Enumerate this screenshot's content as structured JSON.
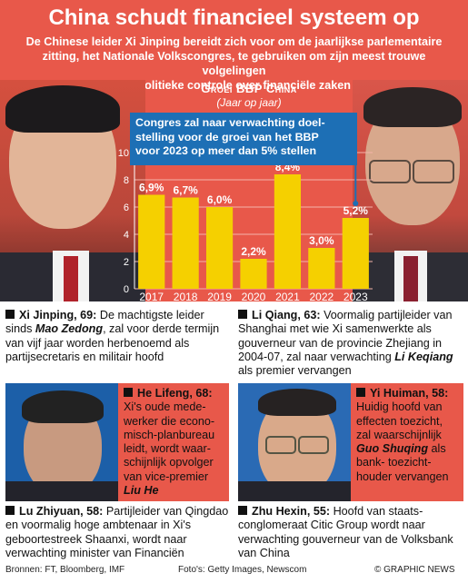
{
  "header": {
    "title": "China schudt financieel systeem op",
    "intro_lines": [
      "De Chinese leider Xi Jinping bereidt zich voor om de jaarlijkse parlementaire",
      "zitting, het Nationale Volkscongres, te gebruiken om zijn meest trouwe volgelingen",
      "te benoemen om de politieke controle over financiële zaken aan te scherpen"
    ]
  },
  "chart_data": {
    "type": "bar",
    "title": "Groei BBP China",
    "subtitle": "(Jaar op jaar)",
    "categories": [
      "2017",
      "2018",
      "2019",
      "2020",
      "2021",
      "2022",
      "2023"
    ],
    "values": [
      6.9,
      6.7,
      6.0,
      2.2,
      8.4,
      3.0,
      5.2
    ],
    "value_labels": [
      "6,9%",
      "6,7%",
      "6,0%",
      "2,2%",
      "8,4%",
      "3,0%",
      "5,2%"
    ],
    "yticks": [
      0,
      2,
      4,
      6,
      8,
      10
    ],
    "ylim": [
      0,
      10
    ],
    "grid": true,
    "bar_color": "#f5d000",
    "annotation": {
      "lines": [
        "Congres zal naar verwachting doel-",
        "stelling voor de groei van het BBP",
        "voor 2023 op meer dan 5% stellen"
      ],
      "color": "#1d6fb5"
    }
  },
  "bios": {
    "xi": {
      "name": "Xi Jinping, 69:",
      "text_a": " De machtigste leider sinds ",
      "em": "Mao Zedong",
      "text_b": ", zal voor derde termijn van vijf jaar worden herbenoemd als partijsecretaris en militair hoofd"
    },
    "li": {
      "name": "Li Qiang, 63:",
      "text_a": " Voormalig partijleider van Shanghai met wie Xi samenwerkte als gouverneur van de provincie Zhejiang in 2004-07, zal naar verwachting ",
      "em": "Li Keqiang",
      "text_b": " als premier vervangen"
    },
    "he": {
      "name": "He Lifeng, 68:",
      "text_a": " Xi's oude mede-werker die econo-misch-planbureau leidt, wordt waar-schijnlijk opvolger van vice-premier ",
      "em": "Liu He",
      "text_b": ""
    },
    "yi": {
      "name": "Yi Huiman, 58:",
      "text_a": " Huidig hoofd van effecten toezicht, zal waarschijnlijk ",
      "em": "Guo Shuqing",
      "text_b": " als bank- toezicht-houder vervangen"
    },
    "lu": {
      "name": "Lu Zhiyuan, 58:",
      "text_a": " Partijleider van Qingdao en voormalig hoge ambtenaar in Xi's geboortestreek Shaanxi, wordt naar verwachting minister van Financiën",
      "em": "",
      "text_b": ""
    },
    "zhu": {
      "name": "Zhu Hexin, 55:",
      "text_a": " Hoofd van staats-conglomeraat Citic Group wordt naar verwachting gouverneur van de Volksbank van China",
      "em": "",
      "text_b": ""
    }
  },
  "footer": {
    "sources": "Bronnen: FT, Bloomberg, IMF",
    "photos": "Foto's: Getty Images, Newscom",
    "brand": "© GRAPHIC NEWS"
  },
  "colors": {
    "accent_red": "#e8584a",
    "bar_yellow": "#f5d000",
    "callout_blue": "#1d6fb5"
  }
}
